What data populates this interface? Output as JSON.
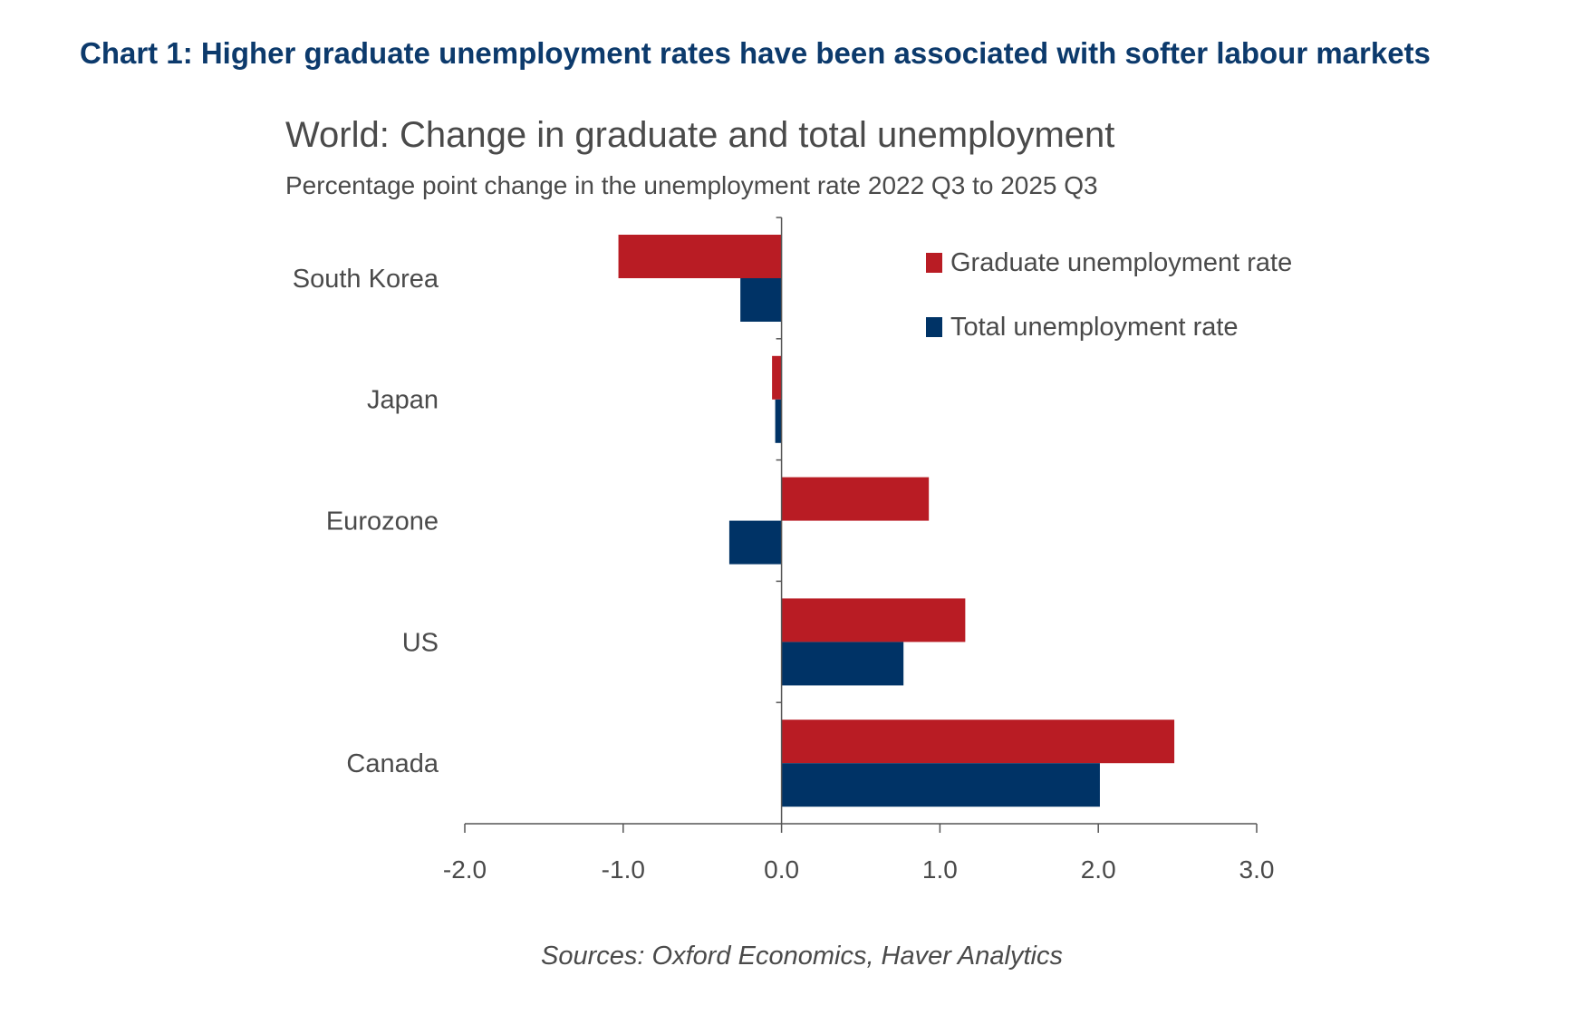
{
  "headline": "Chart 1: Higher graduate unemployment rates have been associated with softer labour markets",
  "source": "Sources: Oxford Economics, Haver Analytics",
  "colors": {
    "graduate": "#b91c24",
    "total": "#003366",
    "headline": "#0c3a6c",
    "text": "#4a4a4a"
  },
  "chart_data": {
    "type": "bar",
    "orientation": "horizontal",
    "title": "World: Change in graduate and total unemployment",
    "subtitle": "Percentage point change in the unemployment rate 2022 Q3 to 2025 Q3",
    "categories": [
      "South Korea",
      "Japan",
      "Eurozone",
      "US",
      "Canada"
    ],
    "series": [
      {
        "name": "Graduate unemployment rate",
        "values": [
          -1.03,
          -0.06,
          0.93,
          1.16,
          2.48
        ]
      },
      {
        "name": "Total unemployment rate",
        "values": [
          -0.26,
          -0.04,
          -0.33,
          0.77,
          2.01
        ]
      }
    ],
    "xlim": [
      -2.0,
      3.0
    ],
    "xticks": [
      "-2.0",
      "-1.0",
      "0.0",
      "1.0",
      "2.0",
      "3.0"
    ],
    "grid": false,
    "legend": "top-right"
  }
}
